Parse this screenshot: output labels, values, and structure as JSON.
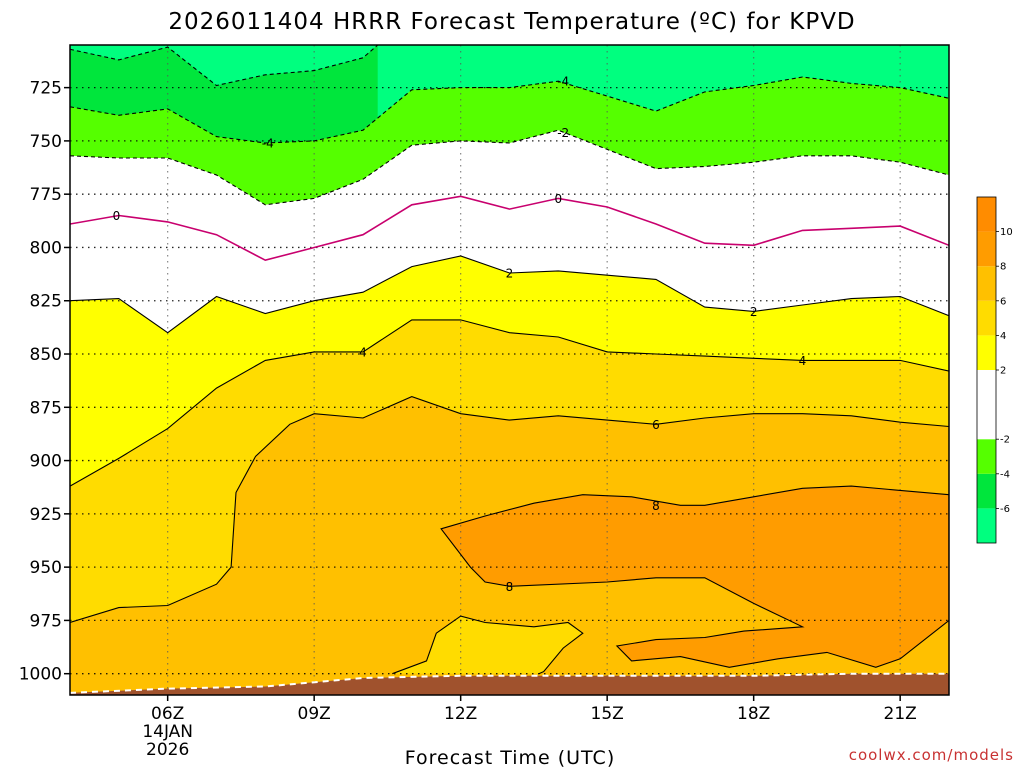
{
  "colors": {
    "neg6": "#00ff7f",
    "neg4": "#00e63c",
    "neg2": "#55ff00",
    "zero": "#ffffff",
    "pos2": "#ffff00",
    "pos4": "#ffdc00",
    "pos6": "#ffc000",
    "pos8": "#ff9c00",
    "ground": "#a0522d",
    "zero_line": "#c8006e"
  },
  "chart_data": {
    "type": "contour",
    "title": "2026011404 HRRR Forecast Temperature (ºC) for KPVD",
    "xlabel": "Forecast Time (UTC)",
    "credit": "coolwx.com/models",
    "x_range_hours": [
      4,
      22
    ],
    "y_range_hpa": [
      1010,
      705
    ],
    "y_scale": "linear-inverted",
    "grid": true,
    "x_ticks": [
      {
        "value": 6,
        "lines": [
          "06Z",
          "14JAN",
          "2026"
        ]
      },
      {
        "value": 9,
        "lines": [
          "09Z"
        ]
      },
      {
        "value": 12,
        "lines": [
          "12Z"
        ]
      },
      {
        "value": 15,
        "lines": [
          "15Z"
        ]
      },
      {
        "value": 18,
        "lines": [
          "18Z"
        ]
      },
      {
        "value": 21,
        "lines": [
          "21Z"
        ]
      }
    ],
    "y_ticks": [
      725,
      750,
      775,
      800,
      825,
      850,
      875,
      900,
      925,
      950,
      975,
      1000
    ],
    "colorbar": {
      "placement": "right",
      "range": [
        -8,
        12
      ],
      "bands": [
        {
          "from": -8,
          "to": -6,
          "color": "#00ff7f"
        },
        {
          "from": -6,
          "to": -4,
          "color": "#00e63c"
        },
        {
          "from": -4,
          "to": -2,
          "color": "#55ff00"
        },
        {
          "from": -2,
          "to": 2,
          "color": "#ffffff"
        },
        {
          "from": 2,
          "to": 4,
          "color": "#ffff00"
        },
        {
          "from": 4,
          "to": 6,
          "color": "#ffdc00"
        },
        {
          "from": 6,
          "to": 8,
          "color": "#ffc000"
        },
        {
          "from": 8,
          "to": 10,
          "color": "#ff9c00"
        },
        {
          "from": 10,
          "to": 12,
          "color": "#ff8c00"
        }
      ],
      "tick_labels": [
        {
          "value": -6,
          "text": "-6"
        },
        {
          "value": -4,
          "text": "-4"
        },
        {
          "value": -2,
          "text": "-2"
        },
        {
          "value": 2,
          "text": "2"
        },
        {
          "value": 4,
          "text": "4"
        },
        {
          "value": 6,
          "text": "6"
        },
        {
          "value": 8,
          "text": "8"
        },
        {
          "value": 10,
          "text": "10"
        }
      ]
    },
    "contours": [
      {
        "level": -6,
        "dashed": true,
        "points": [
          [
            4,
            707
          ],
          [
            5,
            712
          ],
          [
            6,
            706
          ],
          [
            7,
            724
          ],
          [
            8,
            719
          ],
          [
            9,
            717
          ],
          [
            10,
            711
          ],
          [
            10.3,
            705
          ]
        ]
      },
      {
        "level": -4,
        "dashed": true,
        "points": [
          [
            4,
            734
          ],
          [
            5,
            738
          ],
          [
            6,
            735
          ],
          [
            7,
            748
          ],
          [
            8,
            751
          ],
          [
            9,
            750
          ],
          [
            10,
            745
          ],
          [
            11,
            726
          ],
          [
            12,
            725
          ],
          [
            13,
            725
          ],
          [
            14,
            722
          ],
          [
            15,
            729
          ],
          [
            16,
            736
          ],
          [
            17,
            727
          ],
          [
            18,
            724
          ],
          [
            19,
            720
          ],
          [
            20,
            723
          ],
          [
            21,
            725
          ],
          [
            22,
            730
          ]
        ]
      },
      {
        "level": -2,
        "dashed": true,
        "points": [
          [
            4,
            757
          ],
          [
            5,
            758
          ],
          [
            6,
            758
          ],
          [
            7,
            766
          ],
          [
            8,
            780
          ],
          [
            9,
            777
          ],
          [
            10,
            768
          ],
          [
            11,
            752
          ],
          [
            12,
            750
          ],
          [
            13,
            751
          ],
          [
            14,
            745
          ],
          [
            15,
            754
          ],
          [
            16,
            763
          ],
          [
            17,
            762
          ],
          [
            18,
            760
          ],
          [
            19,
            757
          ],
          [
            20,
            757
          ],
          [
            21,
            760
          ],
          [
            22,
            766
          ]
        ]
      },
      {
        "level": 0,
        "dashed": false,
        "points": [
          [
            4,
            789
          ],
          [
            5,
            785
          ],
          [
            6,
            788
          ],
          [
            7,
            794
          ],
          [
            8,
            806
          ],
          [
            9,
            800
          ],
          [
            10,
            794
          ],
          [
            11,
            780
          ],
          [
            12,
            776
          ],
          [
            13,
            782
          ],
          [
            14,
            777
          ],
          [
            15,
            781
          ],
          [
            16,
            789
          ],
          [
            17,
            798
          ],
          [
            18,
            799
          ],
          [
            19,
            792
          ],
          [
            20,
            791
          ],
          [
            21,
            790
          ],
          [
            22,
            799
          ]
        ]
      },
      {
        "level": 2,
        "dashed": false,
        "points": [
          [
            4,
            825
          ],
          [
            5,
            824
          ],
          [
            6,
            840
          ],
          [
            7,
            823
          ],
          [
            8,
            831
          ],
          [
            9,
            825
          ],
          [
            10,
            821
          ],
          [
            11,
            809
          ],
          [
            12,
            804
          ],
          [
            13,
            812
          ],
          [
            14,
            811
          ],
          [
            15,
            813
          ],
          [
            16,
            815
          ],
          [
            17,
            828
          ],
          [
            18,
            830
          ],
          [
            19,
            827
          ],
          [
            20,
            824
          ],
          [
            21,
            823
          ],
          [
            22,
            832
          ]
        ]
      },
      {
        "level": 4,
        "dashed": false,
        "points": [
          [
            4,
            912
          ],
          [
            5,
            899
          ],
          [
            6,
            885
          ],
          [
            7,
            866
          ],
          [
            8,
            853
          ],
          [
            9,
            849
          ],
          [
            10,
            849
          ],
          [
            11,
            834
          ],
          [
            12,
            834
          ],
          [
            13,
            840
          ],
          [
            14,
            842
          ],
          [
            15,
            849
          ],
          [
            16,
            850
          ],
          [
            17,
            851
          ],
          [
            18,
            852
          ],
          [
            19,
            853
          ],
          [
            20,
            853
          ],
          [
            21,
            853
          ],
          [
            22,
            858
          ]
        ]
      },
      {
        "level": 6,
        "dashed": false,
        "points": [
          [
            4,
            976
          ],
          [
            5,
            969
          ],
          [
            6,
            968
          ],
          [
            7,
            958
          ],
          [
            7.3,
            950
          ],
          [
            7.4,
            915
          ],
          [
            7.8,
            898
          ],
          [
            8.5,
            883
          ],
          [
            9,
            878
          ],
          [
            10,
            880
          ],
          [
            11,
            870
          ],
          [
            12,
            878
          ],
          [
            13,
            881
          ],
          [
            14,
            879
          ],
          [
            15,
            881
          ],
          [
            16,
            883
          ],
          [
            17,
            880
          ],
          [
            18,
            878
          ],
          [
            19,
            878
          ],
          [
            20,
            879
          ],
          [
            21,
            882
          ],
          [
            22,
            884
          ]
        ]
      },
      {
        "level": 8,
        "dashed": false,
        "closed": true,
        "points": [
          [
            11.6,
            932
          ],
          [
            12.5,
            926
          ],
          [
            13.5,
            920
          ],
          [
            14.5,
            916
          ],
          [
            15.5,
            917
          ],
          [
            16.5,
            921
          ],
          [
            17,
            921
          ],
          [
            18,
            917
          ],
          [
            19,
            913
          ],
          [
            20,
            912
          ],
          [
            21,
            914
          ],
          [
            22,
            916
          ],
          [
            22,
            975
          ],
          [
            21,
            993
          ],
          [
            20.5,
            997
          ],
          [
            19.5,
            990
          ],
          [
            18.5,
            993
          ],
          [
            17.5,
            997
          ],
          [
            16.5,
            992
          ],
          [
            15.5,
            994
          ],
          [
            15.2,
            987
          ],
          [
            16,
            984
          ],
          [
            17,
            983
          ],
          [
            17.8,
            980
          ],
          [
            19,
            978
          ],
          [
            18,
            967
          ],
          [
            17,
            955
          ],
          [
            16,
            955
          ],
          [
            15,
            957
          ],
          [
            13,
            959
          ],
          [
            12.5,
            957
          ],
          [
            12.2,
            950
          ],
          [
            11.6,
            932
          ]
        ]
      },
      {
        "level": 6,
        "dashed": false,
        "points": [
          [
            10.6,
            1000
          ],
          [
            11.3,
            994
          ],
          [
            11.5,
            981
          ],
          [
            12,
            973
          ],
          [
            12.5,
            976
          ],
          [
            13.5,
            978
          ],
          [
            14.2,
            976
          ],
          [
            14.5,
            981
          ],
          [
            14.1,
            988
          ],
          [
            13.7,
            999
          ],
          [
            13.6,
            1000
          ]
        ]
      }
    ],
    "contour_labels": [
      {
        "x": 4.95,
        "y": 785,
        "text": "0"
      },
      {
        "x": 8.05,
        "y": 751,
        "text": "-4"
      },
      {
        "x": 14.1,
        "y": 722,
        "text": "-4"
      },
      {
        "x": 14.1,
        "y": 746,
        "text": "-2"
      },
      {
        "x": 14.0,
        "y": 777,
        "text": "0"
      },
      {
        "x": 13.0,
        "y": 812,
        "text": "2"
      },
      {
        "x": 18.0,
        "y": 830,
        "text": "2"
      },
      {
        "x": 10.0,
        "y": 849,
        "text": "4"
      },
      {
        "x": 19.0,
        "y": 853,
        "text": "4"
      },
      {
        "x": 16.0,
        "y": 883,
        "text": "6"
      },
      {
        "x": 16.0,
        "y": 921,
        "text": "8"
      },
      {
        "x": 13.0,
        "y": 959,
        "text": "8"
      }
    ],
    "surface_pressure_hpa": [
      [
        4,
        1009
      ],
      [
        6,
        1007
      ],
      [
        8,
        1006
      ],
      [
        10,
        1002
      ],
      [
        12,
        1001
      ],
      [
        14,
        1001
      ],
      [
        16,
        1001
      ],
      [
        18,
        1001
      ],
      [
        20,
        1000
      ],
      [
        22,
        1000
      ]
    ]
  }
}
